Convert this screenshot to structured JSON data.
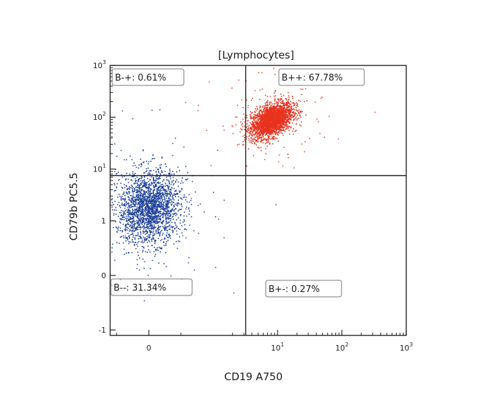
{
  "chart_data": {
    "type": "scatter",
    "title": "[Lymphocytes]",
    "xlabel": "CD19 A750",
    "ylabel": "CD79b PC5.5",
    "x_scale": "biexponential",
    "y_scale": "biexponential",
    "xlim": [
      -0.6,
      1000
    ],
    "ylim": [
      -1.1,
      1000
    ],
    "x_ticks": [
      {
        "value": 0,
        "base": "0",
        "exp": ""
      },
      {
        "value": 10,
        "base": "10",
        "exp": "1"
      },
      {
        "value": 100,
        "base": "10",
        "exp": "2"
      },
      {
        "value": 1000,
        "base": "10",
        "exp": "3"
      }
    ],
    "y_ticks": [
      {
        "value": -1,
        "base": "-1",
        "exp": ""
      },
      {
        "value": 0,
        "base": "0",
        "exp": ""
      },
      {
        "value": 1,
        "base": "1",
        "exp": ""
      },
      {
        "value": 10,
        "base": "10",
        "exp": "1"
      },
      {
        "value": 100,
        "base": "10",
        "exp": "2"
      },
      {
        "value": 1000,
        "base": "10",
        "exp": "3"
      }
    ],
    "gates": {
      "x": 3.2,
      "y": 7.5
    },
    "quadrants": [
      {
        "name": "B-+",
        "label": "B-+: 0.61%",
        "percent": 0.61
      },
      {
        "name": "B++",
        "label": "B++: 67.78%",
        "percent": 67.78
      },
      {
        "name": "B--",
        "label": "B--: 31.34%",
        "percent": 31.34
      },
      {
        "name": "B+-",
        "label": "B+-: 0.27%",
        "percent": 0.27
      }
    ],
    "series": [
      {
        "color": "#e8321e",
        "center_x": 8,
        "center_y": 90
      },
      {
        "color": "#1b3f9a",
        "center_x": 0,
        "center_y": 1.8
      }
    ],
    "grid": false
  }
}
